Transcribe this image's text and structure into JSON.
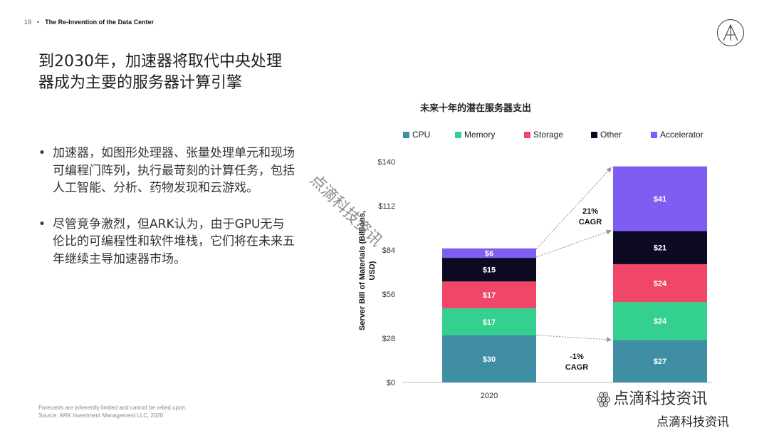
{
  "header": {
    "page_number": "19",
    "section_title": "The Re-Invention of the Data Center"
  },
  "title": {
    "line1": "到2030年，加速器将取代中央处理",
    "line2": "器成为主要的服务器计算引擎"
  },
  "bullets": [
    "加速器，如图形处理器、张量处理单元和现场可编程门阵列，执行最苛刻的计算任务，包括人工智能、分析、药物发现和云游戏。",
    "尽管竞争激烈，但ARK认为，由于GPU无与伦比的可编程性和软件堆栈，它们将在未来五年继续主导加速器市场。"
  ],
  "footnote": {
    "line1": "Forecasts are inherently limited and cannot be relied upon.",
    "line2": "Source: ARK Investment Management LLC, 2020"
  },
  "watermark": "点滴科技资讯",
  "wechat_label": "点滴科技资讯",
  "brand_label": "点滴科技资讯",
  "chart_data": {
    "type": "bar",
    "stacked": true,
    "title": "未来十年的潜在服务器支出",
    "ylabel": "Server Bill of Materials (Billions, USD)",
    "ylim": [
      0,
      140
    ],
    "yticks": [
      "$0",
      "$28",
      "$56",
      "$84",
      "$112",
      "$140"
    ],
    "ytick_values": [
      0,
      28,
      56,
      84,
      112,
      140
    ],
    "categories": [
      "2020",
      ""
    ],
    "legend_position": "top",
    "series": [
      {
        "name": "CPU",
        "color": "#3f8ea3",
        "values": [
          30,
          27
        ],
        "labels": [
          "$30",
          "$27"
        ]
      },
      {
        "name": "Memory",
        "color": "#33d08f",
        "values": [
          17,
          24
        ],
        "labels": [
          "$17",
          "$24"
        ]
      },
      {
        "name": "Storage",
        "color": "#f04667",
        "values": [
          17,
          24
        ],
        "labels": [
          "$17",
          "$24"
        ]
      },
      {
        "name": "Other",
        "color": "#0c0a22",
        "values": [
          15,
          21
        ],
        "labels": [
          "$15",
          "$21"
        ]
      },
      {
        "name": "Accelerator",
        "color": "#7f5cf2",
        "values": [
          6,
          41
        ],
        "labels": [
          "$6",
          "$41"
        ]
      }
    ],
    "annotations": [
      {
        "line1": "21%",
        "line2": "CAGR"
      },
      {
        "line1": "-1%",
        "line2": "CAGR"
      }
    ]
  }
}
